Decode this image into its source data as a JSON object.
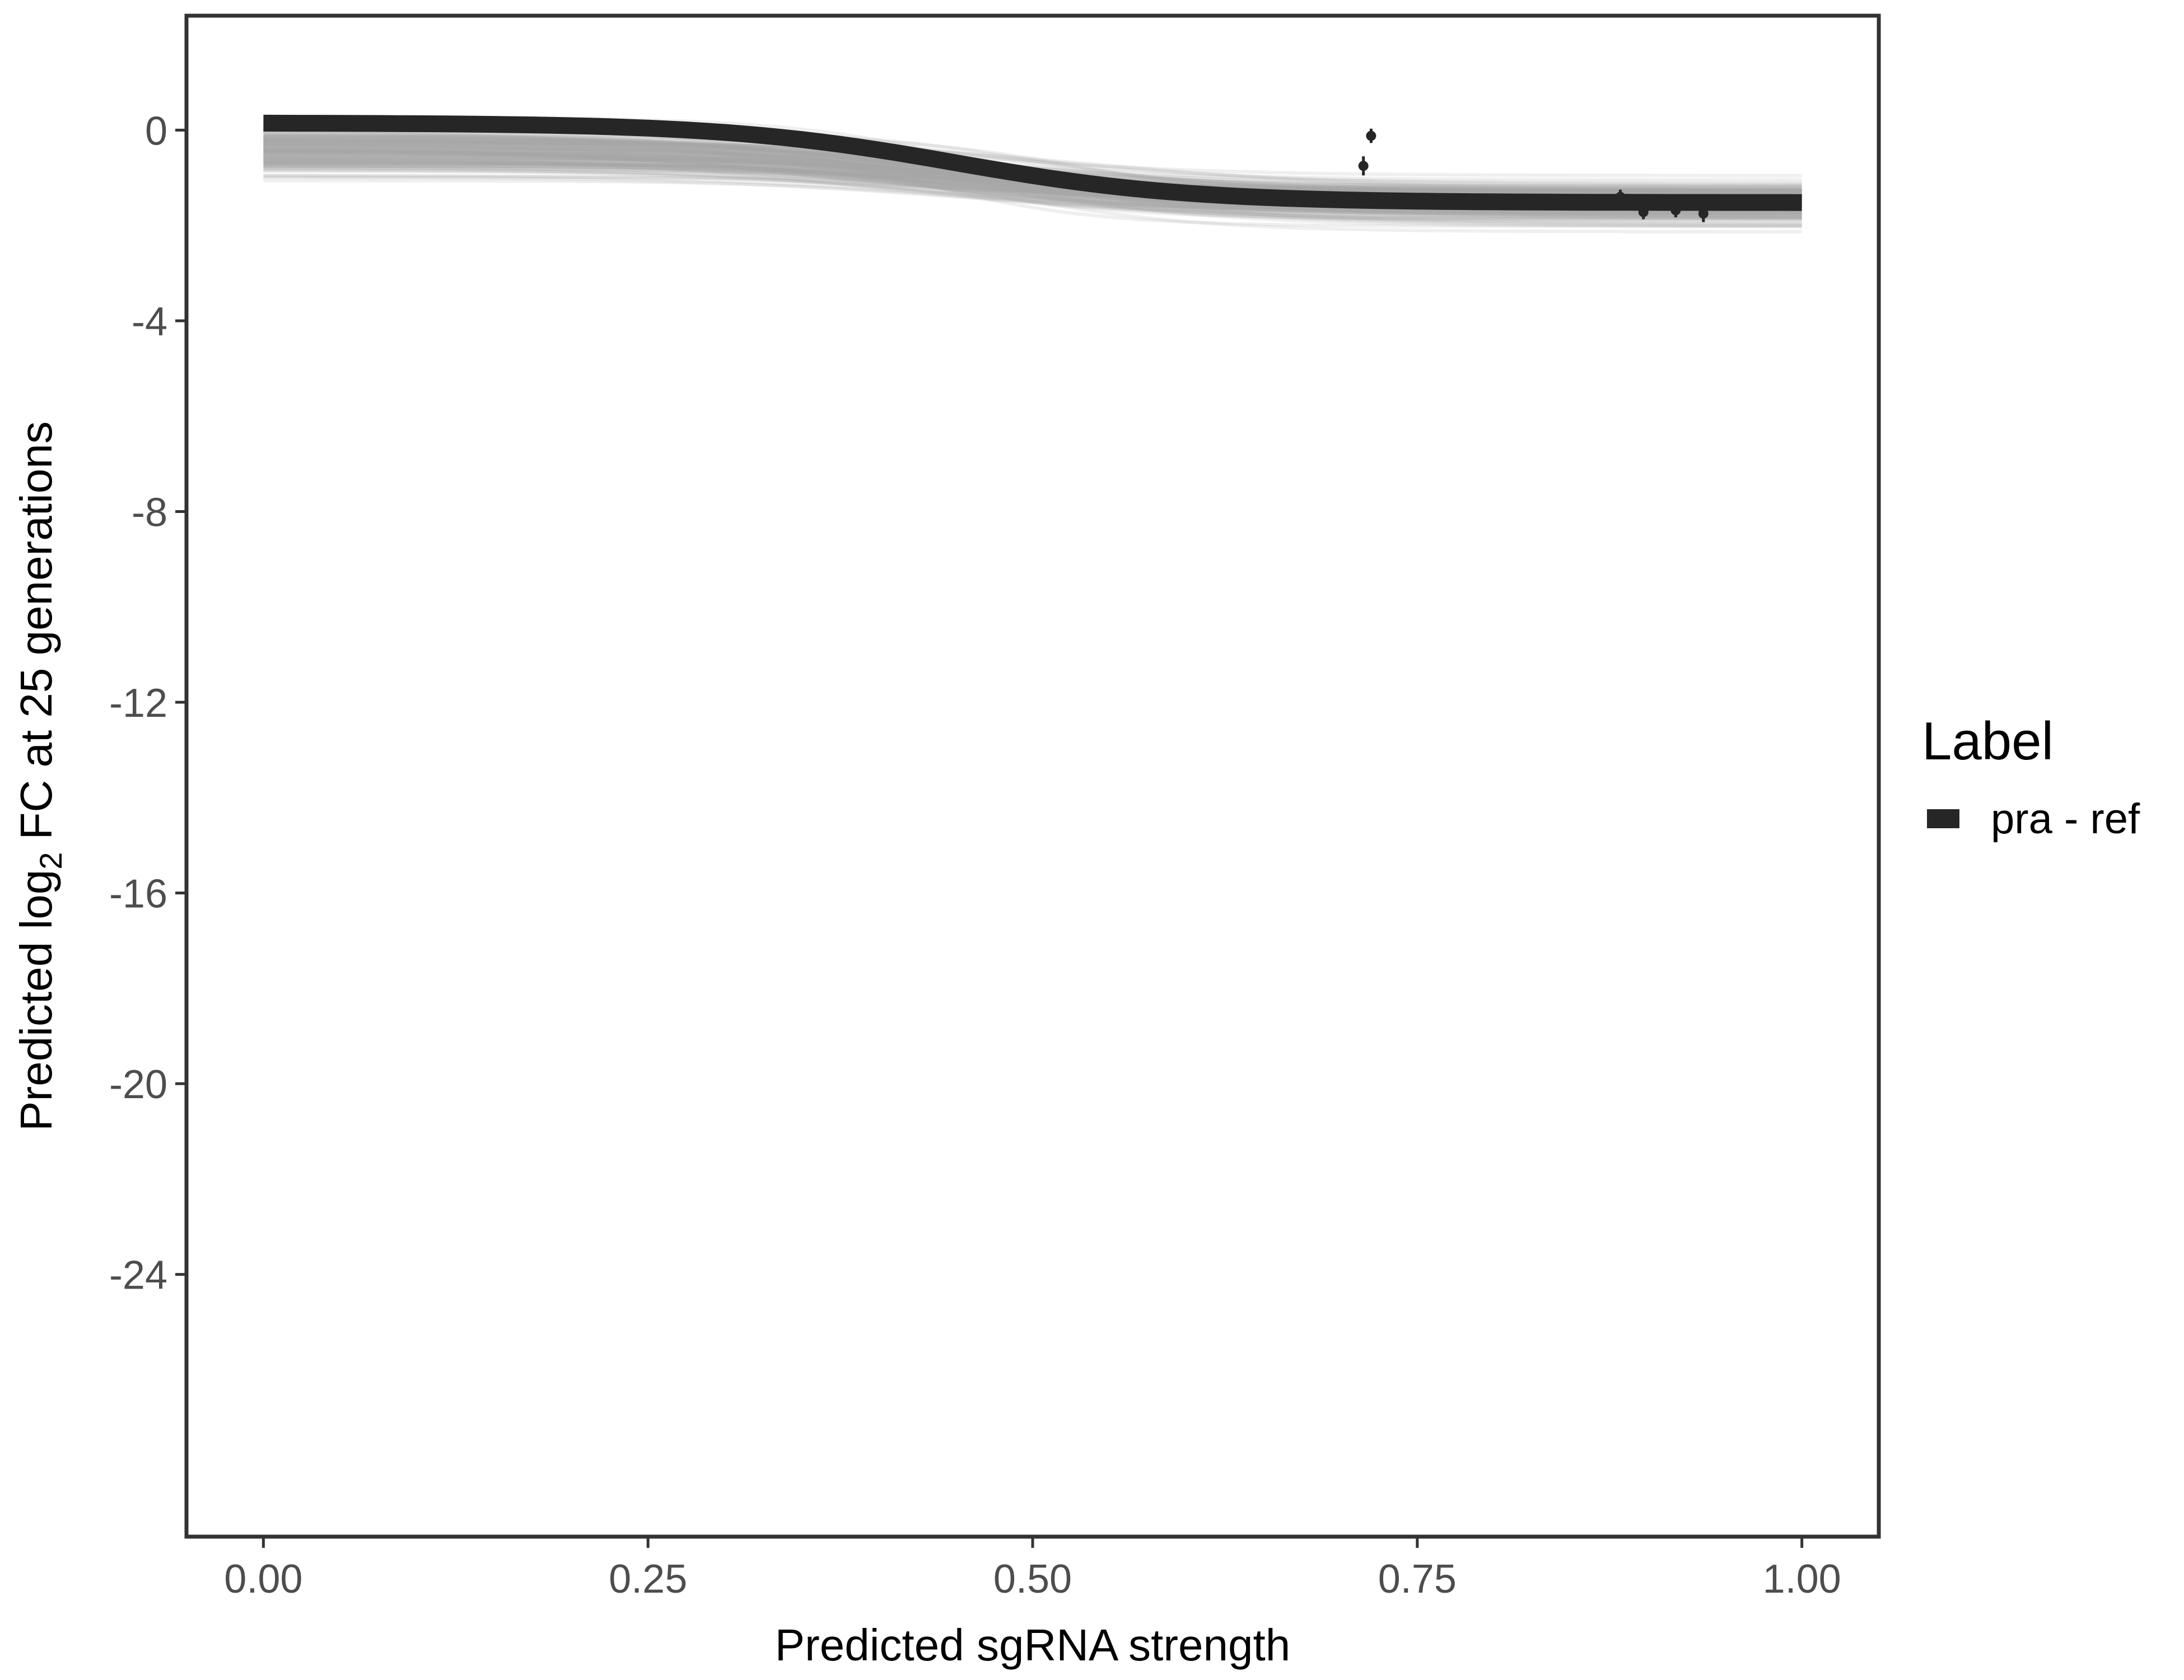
{
  "chart_data": {
    "type": "line",
    "xlabel": "Predicted sgRNA strength",
    "ylabel_prefix": "Predicted  log",
    "ylabel_subscript": "2",
    "ylabel_suffix": " FC at 25 generations",
    "xlim": [
      -0.05,
      1.05
    ],
    "ylim": [
      -29.5,
      2.4
    ],
    "x_ticks": [
      0.0,
      0.25,
      0.5,
      0.75,
      1.0
    ],
    "x_tick_labels": [
      "0.00",
      "0.25",
      "0.50",
      "0.75",
      "1.00"
    ],
    "y_ticks": [
      0,
      -4,
      -8,
      -12,
      -16,
      -20,
      -24
    ],
    "y_tick_labels": [
      "0",
      "-4",
      "-8",
      "-12",
      "-16",
      "-20",
      "-24"
    ],
    "grid": false,
    "legend": {
      "title": "Label",
      "position": "right",
      "entries": [
        {
          "label": "pra - ref",
          "color": "#262626"
        }
      ]
    },
    "series": [
      {
        "name": "pra - ref",
        "color": "#262626",
        "curve": {
          "y0": 0.15,
          "y1": -1.52,
          "midpoint": 0.45,
          "scale": 0.075
        }
      }
    ],
    "posterior_draws": {
      "color": "#a6a6a6",
      "count": 160,
      "y0_range": [
        -2.0,
        0.3
      ],
      "y1_range": [
        -3.6,
        -0.4
      ]
    },
    "points": [
      {
        "x": 0.715,
        "y": -0.75,
        "err": 0.2
      },
      {
        "x": 0.72,
        "y": -0.12,
        "err": 0.15
      },
      {
        "x": 0.882,
        "y": -1.4,
        "err": 0.15
      },
      {
        "x": 0.897,
        "y": -1.72,
        "err": 0.15
      },
      {
        "x": 0.918,
        "y": -1.68,
        "err": 0.15
      },
      {
        "x": 0.936,
        "y": -1.75,
        "err": 0.18
      }
    ]
  }
}
